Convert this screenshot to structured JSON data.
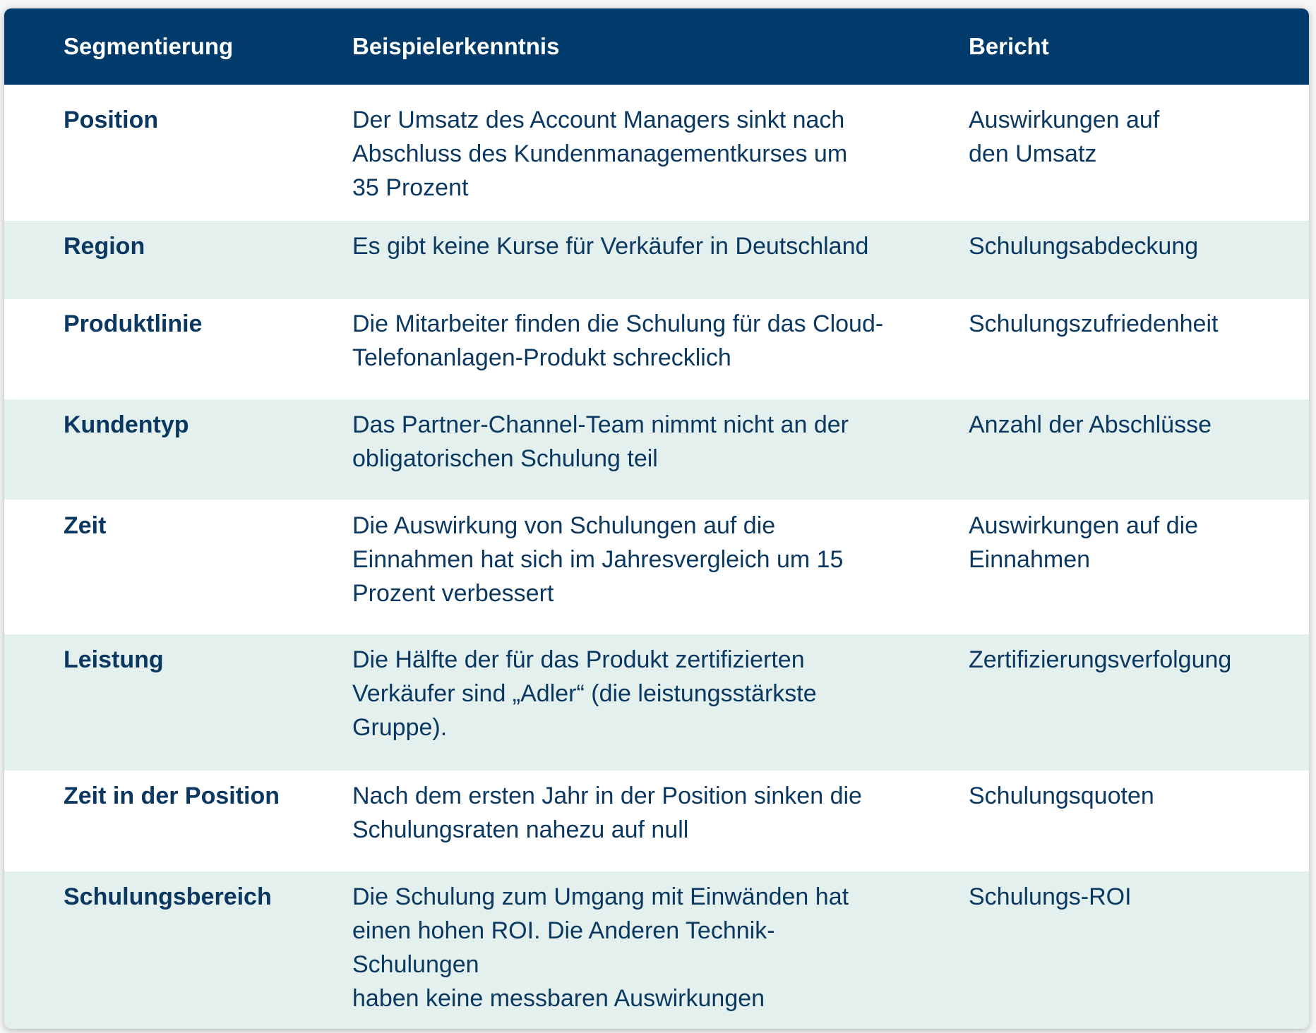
{
  "table": {
    "headers": {
      "segmentation": "Segmentierung",
      "insight": "Beispielerkenntnis",
      "report": "Bericht"
    },
    "rows": [
      {
        "segment": "Position",
        "insight": "Der Umsatz des Account Managers sinkt nach\nAbschluss des Kundenmanagementkurses um\n35 Prozent",
        "report": "Auswirkungen auf\nden Umsatz"
      },
      {
        "segment": "Region",
        "insight": "Es gibt keine Kurse für Verkäufer in Deutschland",
        "report": "Schulungsabdeckung"
      },
      {
        "segment": "Produktlinie",
        "insight": "Die Mitarbeiter finden die Schulung für das Cloud-\nTelefonanlagen-Produkt schrecklich",
        "report": "Schulungszufriedenheit"
      },
      {
        "segment": "Kundentyp",
        "insight": "Das Partner-Channel-Team nimmt nicht an der\nobligatorischen Schulung teil",
        "report": "Anzahl der Abschlüsse"
      },
      {
        "segment": "Zeit",
        "insight": "Die Auswirkung von Schulungen auf die\nEinnahmen hat sich im Jahresvergleich um 15\nProzent verbessert",
        "report": "Auswirkungen auf die\nEinnahmen"
      },
      {
        "segment": "Leistung",
        "insight": "Die Hälfte der für das Produkt zertifizierten\nVerkäufer sind „Adler“ (die leistungsstärkste\nGruppe).",
        "report": "Zertifizierungsverfolgung"
      },
      {
        "segment": "Zeit in der Position",
        "insight": "Nach dem ersten Jahr in der Position sinken die\nSchulungsraten nahezu auf null",
        "report": "Schulungsquoten"
      },
      {
        "segment": "Schulungsbereich",
        "insight": "Die Schulung zum Umgang mit Einwänden hat\neinen hohen ROI. Die Anderen Technik-Schulungen\nhaben keine messbaren Auswirkungen",
        "report": "Schulungs-ROI"
      }
    ]
  },
  "colors": {
    "header_bg": "#003b6b",
    "header_text": "#ffffff",
    "body_text": "#0b3861",
    "row_alt_bg": "#e3f0ed",
    "row_bg": "#ffffff"
  }
}
